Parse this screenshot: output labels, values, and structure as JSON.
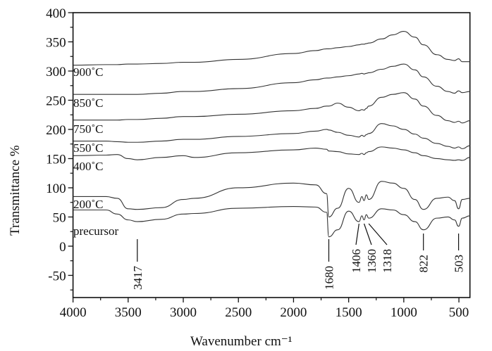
{
  "chart_data": {
    "type": "line",
    "title": "",
    "xlabel": "Wavenumber cm⁻¹",
    "ylabel": "Transmittance %",
    "xlim": [
      4000,
      400
    ],
    "ylim": [
      -88,
      400
    ],
    "xticks": [
      4000,
      3500,
      3000,
      2500,
      2000,
      1500,
      1000,
      500
    ],
    "yticks": [
      400,
      350,
      300,
      250,
      200,
      150,
      100,
      50,
      0,
      -50
    ],
    "grid": false,
    "x": [
      4000,
      3700,
      3600,
      3500,
      3417,
      3200,
      3000,
      2900,
      2500,
      2000,
      1800,
      1700,
      1680,
      1600,
      1500,
      1406,
      1380,
      1360,
      1340,
      1318,
      1200,
      1100,
      1000,
      900,
      822,
      700,
      600,
      540,
      503,
      470,
      400
    ],
    "series": [
      {
        "name": "900˚C",
        "values": [
          310,
          311,
          311,
          312,
          312,
          313,
          315,
          315,
          320,
          330,
          335,
          338,
          338,
          340,
          342,
          345,
          346,
          346,
          347,
          348,
          355,
          362,
          368,
          358,
          345,
          328,
          320,
          318,
          321,
          316,
          316
        ]
      },
      {
        "name": "850˚C",
        "values": [
          260,
          260,
          260,
          260,
          260,
          262,
          265,
          265,
          270,
          280,
          285,
          288,
          288,
          290,
          292,
          295,
          296,
          295,
          296,
          297,
          303,
          308,
          312,
          302,
          290,
          274,
          265,
          262,
          266,
          263,
          265
        ]
      },
      {
        "name": "750˚C",
        "values": [
          216,
          216,
          216,
          217,
          217,
          219,
          222,
          222,
          226,
          232,
          236,
          240,
          240,
          245,
          238,
          232,
          234,
          233,
          236,
          240,
          255,
          260,
          263,
          252,
          240,
          224,
          215,
          212,
          214,
          211,
          215
        ]
      },
      {
        "name": "550˚C",
        "values": [
          180,
          180,
          179,
          178,
          178,
          180,
          183,
          183,
          188,
          193,
          197,
          200,
          199,
          195,
          190,
          187,
          190,
          188,
          191,
          193,
          210,
          206,
          200,
          192,
          185,
          176,
          171,
          168,
          170,
          167,
          172
        ]
      },
      {
        "name": "400˚C",
        "values": [
          155,
          156,
          157,
          150,
          148,
          152,
          155,
          152,
          160,
          165,
          168,
          166,
          163,
          162,
          158,
          157,
          159,
          157,
          160,
          162,
          170,
          168,
          165,
          160,
          155,
          150,
          148,
          147,
          148,
          147,
          152
        ]
      },
      {
        "name": "200˚C",
        "values": [
          85,
          85,
          82,
          64,
          63,
          66,
          80,
          82,
          100,
          108,
          105,
          90,
          50,
          65,
          99,
          75,
          85,
          78,
          88,
          80,
          111,
          108,
          99,
          80,
          63,
          82,
          84,
          78,
          64,
          80,
          82
        ]
      },
      {
        "name": "precursor",
        "values": [
          62,
          62,
          55,
          45,
          42,
          46,
          55,
          56,
          65,
          68,
          67,
          58,
          16,
          28,
          60,
          42,
          52,
          45,
          54,
          48,
          64,
          62,
          54,
          42,
          28,
          48,
          50,
          45,
          34,
          48,
          52
        ]
      }
    ],
    "annotations": [
      {
        "text": "3417",
        "x": 3417
      },
      {
        "text": "1680",
        "x": 1680
      },
      {
        "text": "1406",
        "x": 1406
      },
      {
        "text": "1360",
        "x": 1360
      },
      {
        "text": "1318",
        "x": 1318
      },
      {
        "text": "822",
        "x": 822
      },
      {
        "text": "503",
        "x": 503
      }
    ]
  }
}
